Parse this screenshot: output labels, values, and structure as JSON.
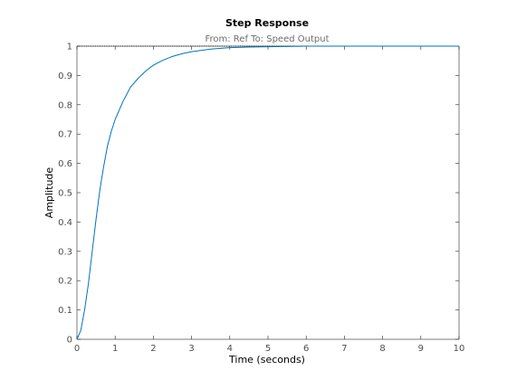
{
  "chart_data": {
    "type": "line",
    "title": "Step Response",
    "subtitle": "From: Ref  To: Speed Output",
    "xlabel": "Time (seconds)",
    "ylabel": "Amplitude",
    "xlim": [
      0,
      10
    ],
    "ylim": [
      0,
      1
    ],
    "xticks": [
      "0",
      "1",
      "2",
      "3",
      "4",
      "5",
      "6",
      "7",
      "8",
      "9",
      "10"
    ],
    "yticks": [
      "0",
      "0.1",
      "0.2",
      "0.3",
      "0.4",
      "0.5",
      "0.6",
      "0.7",
      "0.8",
      "0.9",
      "1"
    ],
    "grid": false,
    "reference_line": {
      "y": 1,
      "style": "dotted"
    },
    "series": [
      {
        "color": "#0072bd",
        "x": [
          0,
          0.1,
          0.2,
          0.3,
          0.4,
          0.5,
          0.6,
          0.7,
          0.8,
          0.9,
          1.0,
          1.2,
          1.4,
          1.6,
          1.8,
          2.0,
          2.25,
          2.5,
          2.75,
          3.0,
          3.5,
          4.0,
          4.5,
          5.0,
          5.5,
          6.0,
          7.0,
          8.0,
          9.0,
          10.0
        ],
        "y": [
          0,
          0.03,
          0.1,
          0.19,
          0.3,
          0.41,
          0.51,
          0.59,
          0.66,
          0.71,
          0.75,
          0.81,
          0.86,
          0.89,
          0.915,
          0.935,
          0.952,
          0.965,
          0.974,
          0.981,
          0.99,
          0.995,
          0.997,
          0.998,
          0.999,
          1.0,
          1.0,
          1.0,
          1.0,
          1.0
        ]
      }
    ]
  },
  "colors": {
    "axes": "#262626",
    "tick_text": "#4d4d4d",
    "subtitle": "#6e6e6e",
    "reference_line": "#000000"
  }
}
